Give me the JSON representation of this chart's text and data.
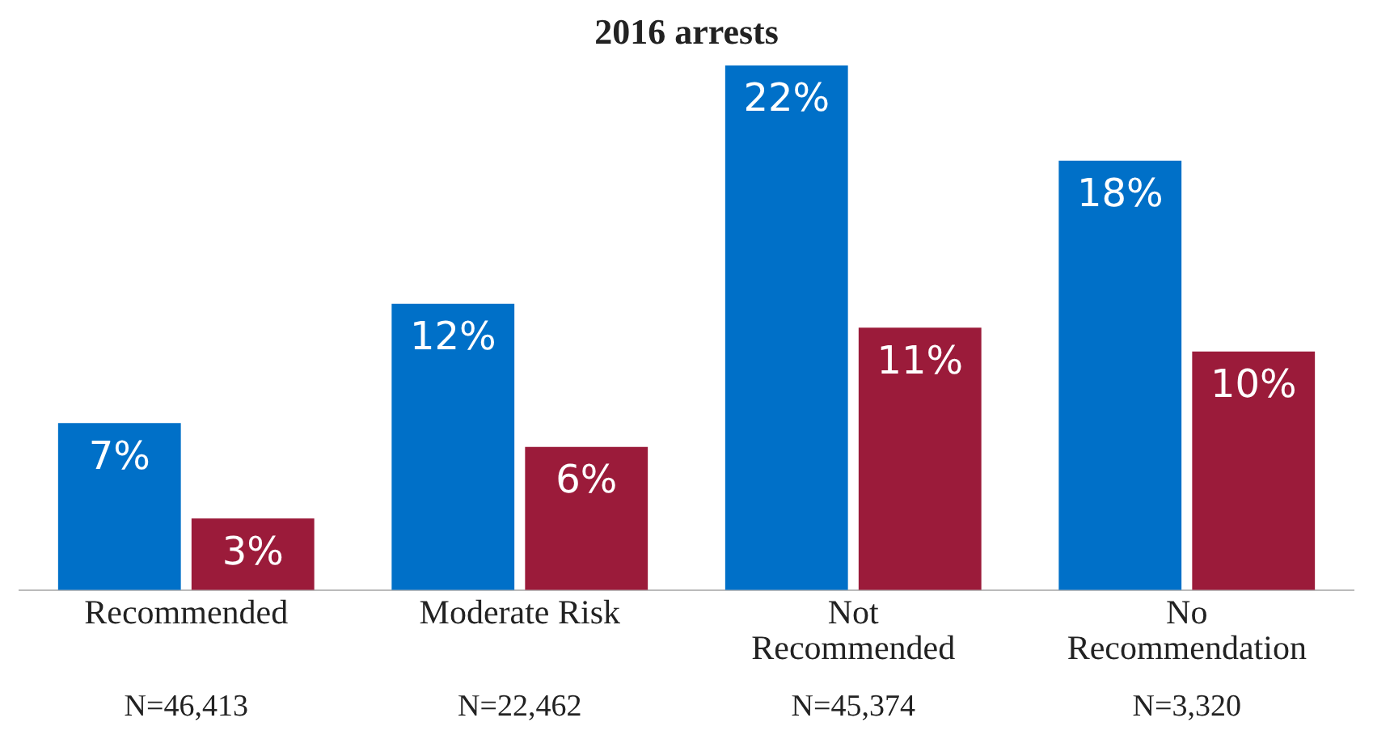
{
  "chart_data": {
    "type": "bar",
    "title": "2016 arrests",
    "categories": [
      "Recommended",
      "Moderate Risk",
      "Not\nRecommended",
      "No\nRecommendation"
    ],
    "series": [
      {
        "color": "#0070c8",
        "values": [
          7,
          12,
          22,
          18
        ],
        "value_labels": [
          "7%",
          "12%",
          "22%",
          "18%"
        ]
      },
      {
        "color": "#9b1b3a",
        "values": [
          3,
          6,
          11,
          10
        ],
        "value_labels": [
          "3%",
          "6%",
          "11%",
          "10%"
        ]
      }
    ],
    "annotations": [
      "N=46,413",
      "N=22,462",
      "N=45,374",
      "N=3,320"
    ],
    "grid": false,
    "legend": false,
    "tick_labels": "x"
  }
}
